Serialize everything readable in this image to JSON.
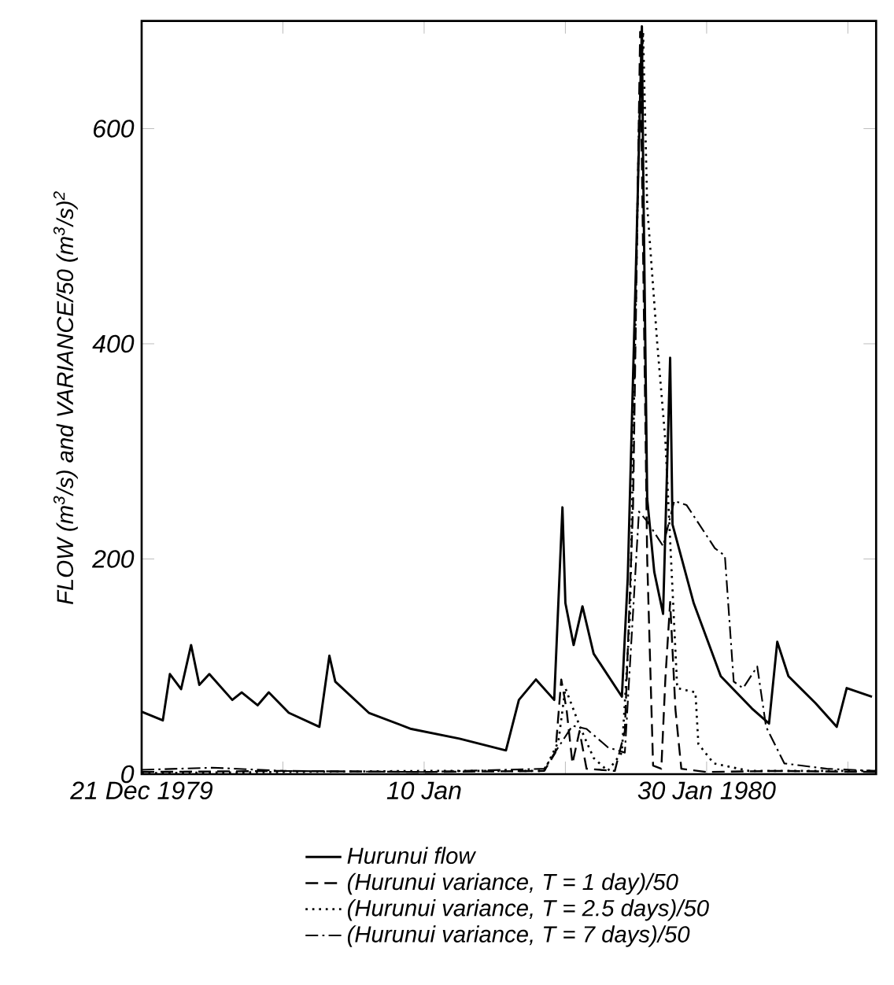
{
  "chart_data": {
    "type": "line",
    "ylabel": "FLOW (m$^{3}$/s) and VARIANCE/50 (m$^{3}$/s)$^{2}$",
    "xlim": [
      "1979-12-21",
      "1980-02-11"
    ],
    "xticks": [
      {
        "value": "1979-12-21",
        "label": "21 Dec 1979"
      },
      {
        "value": "1979-12-31",
        "label": null
      },
      {
        "value": "1980-01-10",
        "label": "10 Jan"
      },
      {
        "value": "1980-01-20",
        "label": null
      },
      {
        "value": "1980-01-30",
        "label": "30 Jan 1980"
      },
      {
        "value": "1980-02-09",
        "label": null
      }
    ],
    "ylim": [
      0,
      700
    ],
    "yticks": [
      0,
      200,
      400,
      600
    ],
    "legend": "bottom",
    "marker": "none",
    "series": [
      {
        "name": "Hurunui flow",
        "color": "#000000",
        "line_style": "solid",
        "x": [
          "1979-12-21",
          "1979-12-22T12:00",
          "1979-12-23",
          "1979-12-23T19:00",
          "1979-12-24T12:00",
          "1979-12-25T02:00",
          "1979-12-25T19:00",
          "1979-12-27T10:00",
          "1979-12-28T02:00",
          "1979-12-29T05:00",
          "1979-12-30",
          "1979-12-31T10:00",
          "1980-01-02T14:00",
          "1980-01-03T07:00",
          "1980-01-03T17:00",
          "1980-01-06T02:00",
          "1980-01-09T02:00",
          "1980-01-12T12:00",
          "1980-01-15T19:00",
          "1980-01-16T17:00",
          "1980-01-17T22:00",
          "1980-01-19T05:00",
          "1980-01-19T19:00",
          "1980-01-20",
          "1980-01-20T14:00",
          "1980-01-21T05:00",
          "1980-01-22",
          "1980-01-24",
          "1980-01-24T10:00",
          "1980-01-25",
          "1980-01-25T10:00",
          "1980-01-25T12:00",
          "1980-01-25T19:00",
          "1980-01-26T07:00",
          "1980-01-26T22:00",
          "1980-01-27T10:00",
          "1980-01-27T14:00",
          "1980-01-29T02:00",
          "1980-01-31",
          "1980-02-02T05:00",
          "1980-02-03T10:00",
          "1980-02-04",
          "1980-02-04T19:00",
          "1980-02-06T17:00",
          "1980-02-08T05:00",
          "1980-02-08T22:00",
          "1980-02-10T17:00"
        ],
        "values": [
          58,
          50,
          93,
          79,
          120,
          83,
          93,
          69,
          76,
          64,
          76,
          57,
          44,
          110,
          86,
          57,
          42,
          33,
          22,
          69,
          88,
          69,
          248,
          159,
          120,
          156,
          112,
          72,
          183,
          474,
          695,
          572,
          256,
          188,
          149,
          387,
          232,
          159,
          91,
          61,
          47,
          123,
          91,
          66,
          44,
          80,
          72
        ]
      },
      {
        "name": "(Hurunui variance, T = 1 day)/50",
        "color": "#000000",
        "line_style": "dashed",
        "x": [
          "1979-12-21",
          "1979-12-31",
          "1980-01-10",
          "1980-01-18T12:00",
          "1980-01-19T07:00",
          "1980-01-19T17:00",
          "1980-01-20T02:00",
          "1980-01-20T12:00",
          "1980-01-21",
          "1980-01-21T12:00",
          "1980-01-23T12:00",
          "1980-01-24T05:00",
          "1980-01-24T19:00",
          "1980-01-25T07:00",
          "1980-01-25T19:00",
          "1980-01-26T05:00",
          "1980-01-26T19:00",
          "1980-01-27T02:00",
          "1980-01-27T10:00",
          "1980-01-27T19:00",
          "1980-01-28T05:00",
          "1980-01-30",
          "1980-02-04",
          "1980-02-11"
        ],
        "values": [
          2,
          3,
          2,
          3,
          20,
          88,
          60,
          10,
          40,
          5,
          3,
          40,
          250,
          690,
          200,
          8,
          5,
          90,
          160,
          60,
          5,
          2,
          3,
          2
        ]
      },
      {
        "name": "(Hurunui variance, T = 2.5 days)/50",
        "color": "#000000",
        "line_style": "dotted",
        "x": [
          "1979-12-21",
          "1979-12-31",
          "1980-01-10",
          "1980-01-18T12:00",
          "1980-01-19T12:00",
          "1980-01-20",
          "1980-01-21",
          "1980-01-22",
          "1980-01-23",
          "1980-01-24",
          "1980-01-24T14:00",
          "1980-01-25T05:00",
          "1980-01-25T12:00",
          "1980-01-25T19:00",
          "1980-01-26T12:00",
          "1980-01-27T02:00",
          "1980-01-27T22:00",
          "1980-01-29T05:00",
          "1980-01-29T10:00",
          "1980-01-30T12:00",
          "1980-02-02",
          "1980-02-11"
        ],
        "values": [
          1,
          2,
          3,
          3,
          30,
          80,
          45,
          15,
          3,
          20,
          150,
          600,
          690,
          528,
          401,
          309,
          80,
          76,
          28,
          10,
          3,
          3
        ]
      },
      {
        "name": "(Hurunui variance, T = 7 days)/50",
        "color": "#000000",
        "line_style": "dashdot",
        "x": [
          "1979-12-21",
          "1979-12-26",
          "1979-12-31",
          "1980-01-10",
          "1980-01-18T12:00",
          "1980-01-19T12:00",
          "1980-01-20T12:00",
          "1980-01-21T12:00",
          "1980-01-23",
          "1980-01-24T05:00",
          "1980-01-25T05:00",
          "1980-01-25T19:00",
          "1980-01-26T22:00",
          "1980-01-27T17:00",
          "1980-01-28T14:00",
          "1980-01-30T14:00",
          "1980-01-31T07:00",
          "1980-01-31T22:00",
          "1980-02-01T14:00",
          "1980-02-02T14:00",
          "1980-02-03T05:00",
          "1980-02-04T12:00",
          "1980-02-07T12:00",
          "1980-02-11"
        ],
        "values": [
          4,
          6,
          3,
          2,
          5,
          25,
          45,
          42,
          25,
          20,
          244,
          235,
          212,
          254,
          250,
          210,
          203,
          86,
          80,
          100,
          44,
          10,
          5,
          3
        ]
      }
    ]
  }
}
